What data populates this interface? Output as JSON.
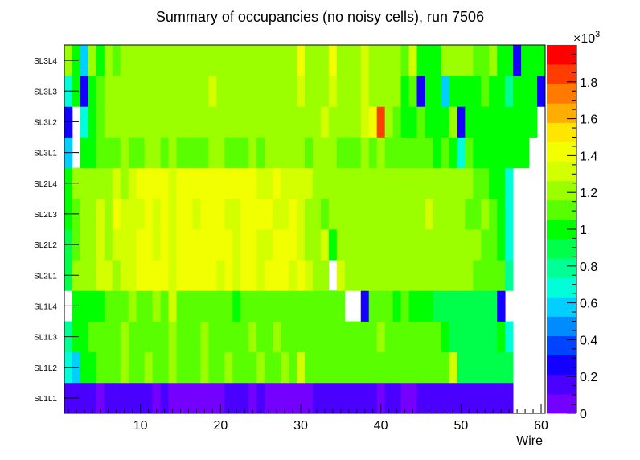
{
  "chart_data": {
    "type": "heatmap",
    "title": "Summary of occupancies (no noisy cells), run 7506",
    "xlabel": "Wire",
    "ylabel": "",
    "x_range": [
      0.5,
      60.5
    ],
    "x_ticks": [
      10,
      20,
      30,
      40,
      50,
      60
    ],
    "y_categories": [
      "SL1L1",
      "SL1L2",
      "SL1L3",
      "SL1L4",
      "SL2L1",
      "SL2L2",
      "SL2L3",
      "SL2L4",
      "SL3L1",
      "SL3L2",
      "SL3L3",
      "SL3L4"
    ],
    "colorbar": {
      "min": 0,
      "max": 2000,
      "ticks": [
        0,
        200,
        400,
        600,
        800,
        1000,
        1200,
        1400,
        1600,
        1800
      ],
      "tick_labels": [
        "0",
        "0.2",
        "0.4",
        "0.6",
        "0.8",
        "1",
        "1.2",
        "1.4",
        "1.6",
        "1.8"
      ],
      "exponent_label": "×10",
      "exponent_power": "3"
    },
    "rows": {
      "SL3L4": [
        1250,
        1050,
        550,
        1200,
        1050,
        1250,
        1150,
        1250,
        1250,
        1250,
        1200,
        1250,
        1200,
        1250,
        1250,
        1250,
        1200,
        1200,
        1250,
        1250,
        1250,
        1200,
        1250,
        1250,
        1200,
        1250,
        1250,
        1200,
        1250,
        1400,
        1250,
        1200,
        1250,
        1400,
        1200,
        1200,
        1250,
        1350,
        1200,
        1250,
        1250,
        1250,
        1150,
        1350,
        1050,
        1000,
        1050,
        1250,
        1200,
        1200,
        1200,
        1100,
        1100,
        1250,
        1050,
        1000,
        250,
        1000,
        1050,
        1050
      ],
      "SL3L3": [
        650,
        1050,
        250,
        1050,
        1150,
        1200,
        1250,
        1200,
        1200,
        1200,
        1250,
        1200,
        1200,
        1200,
        1250,
        1200,
        1200,
        1200,
        1300,
        1250,
        1200,
        1200,
        1200,
        1250,
        1200,
        1200,
        1200,
        1250,
        1250,
        1350,
        1200,
        1200,
        1250,
        1350,
        1200,
        1200,
        1200,
        1300,
        1200,
        1200,
        1200,
        1250,
        1050,
        1150,
        250,
        1050,
        1050,
        600,
        1050,
        1050,
        1050,
        1050,
        1150,
        1050,
        1050,
        750,
        1050,
        950,
        1050,
        300
      ],
      "SL3L2": [
        300,
        null,
        650,
        1050,
        1150,
        1200,
        1200,
        1200,
        1200,
        1200,
        1200,
        1200,
        1200,
        1200,
        1250,
        1200,
        1200,
        1200,
        1250,
        1200,
        1200,
        1200,
        1250,
        1200,
        1200,
        1200,
        1200,
        1200,
        1200,
        1250,
        1200,
        1200,
        1300,
        1250,
        1200,
        1250,
        1200,
        1350,
        1450,
        1850,
        1250,
        1150,
        1050,
        1050,
        1100,
        1050,
        1050,
        1050,
        1250,
        300,
        1050,
        1050,
        1050,
        1050,
        1050,
        1050,
        1050,
        1050,
        1050,
        null
      ],
      "SL3L1": [
        600,
        null,
        1050,
        1050,
        1150,
        1150,
        1150,
        1200,
        1150,
        1150,
        1200,
        1250,
        1150,
        1250,
        1150,
        1150,
        1150,
        1150,
        1200,
        1200,
        1150,
        1150,
        1150,
        1200,
        1150,
        1200,
        1200,
        1200,
        1250,
        1200,
        1150,
        1200,
        1250,
        1250,
        1150,
        1150,
        1150,
        1250,
        1150,
        1200,
        1100,
        1100,
        1100,
        1150,
        1100,
        1150,
        1050,
        1100,
        1050,
        700,
        1100,
        1050,
        1050,
        1050,
        1050,
        1050,
        1050,
        1050,
        null,
        null
      ],
      "SL2L4": [
        1050,
        1200,
        1200,
        1200,
        1200,
        1250,
        1350,
        1250,
        1350,
        1400,
        1400,
        1400,
        1400,
        1350,
        1400,
        1400,
        1400,
        1400,
        1400,
        1400,
        1400,
        1400,
        1400,
        1400,
        1350,
        1350,
        1400,
        1350,
        1300,
        1350,
        1300,
        1250,
        1250,
        1250,
        1250,
        1250,
        1250,
        1250,
        1250,
        1250,
        1250,
        1250,
        1250,
        1250,
        1250,
        1250,
        1250,
        1250,
        1250,
        1200,
        1200,
        1150,
        1100,
        1050,
        1050,
        700,
        null,
        null,
        null,
        null
      ],
      "SL2L3": [
        1050,
        1150,
        1250,
        1200,
        1300,
        1250,
        1400,
        1350,
        1300,
        1350,
        1400,
        1350,
        1400,
        1350,
        1400,
        1400,
        1350,
        1450,
        1400,
        1450,
        1350,
        1350,
        1400,
        1400,
        1400,
        1450,
        1350,
        1350,
        1400,
        1300,
        1250,
        1250,
        1100,
        1250,
        1250,
        1250,
        1250,
        1250,
        1250,
        1250,
        1250,
        1250,
        1250,
        1250,
        1250,
        1300,
        1250,
        1250,
        1200,
        1250,
        1150,
        1150,
        1200,
        1100,
        1050,
        700,
        null,
        null,
        null,
        null
      ],
      "SL2L2": [
        850,
        1150,
        1250,
        1250,
        1300,
        1250,
        1300,
        1300,
        1350,
        1400,
        1400,
        1350,
        1400,
        1350,
        1400,
        1400,
        1450,
        1400,
        1400,
        1400,
        1400,
        1350,
        1400,
        1450,
        1350,
        1350,
        1400,
        1400,
        1400,
        1300,
        1250,
        1250,
        1300,
        1050,
        1250,
        1250,
        1250,
        1250,
        1250,
        1250,
        1250,
        1250,
        1250,
        1250,
        1250,
        1250,
        1250,
        1250,
        1200,
        1200,
        1200,
        1200,
        1150,
        1100,
        1050,
        700,
        null,
        null,
        null,
        null
      ],
      "SL2L1": [
        850,
        1200,
        1250,
        1250,
        1300,
        1350,
        1250,
        1300,
        1350,
        1400,
        1400,
        1400,
        1400,
        1350,
        1400,
        1400,
        1400,
        1400,
        1400,
        1350,
        1400,
        1350,
        1400,
        1400,
        1350,
        1400,
        1400,
        1400,
        1350,
        1400,
        1300,
        1250,
        1250,
        null,
        1300,
        1250,
        1250,
        1250,
        1250,
        1250,
        1250,
        1250,
        1250,
        1250,
        1250,
        1250,
        1250,
        1250,
        1250,
        1200,
        1200,
        1150,
        1150,
        1100,
        1100,
        800,
        null,
        null,
        null,
        null
      ],
      "SL1L4": [
        null,
        950,
        1050,
        1050,
        1050,
        1150,
        1150,
        1150,
        1200,
        1100,
        1150,
        1200,
        1150,
        1350,
        1150,
        1150,
        1150,
        1150,
        1150,
        1150,
        1150,
        1050,
        1150,
        1150,
        1150,
        1150,
        1150,
        1100,
        1150,
        1100,
        1150,
        1150,
        1150,
        1150,
        1150,
        null,
        null,
        250,
        1150,
        1150,
        1100,
        1050,
        1150,
        1050,
        950,
        950,
        850,
        850,
        850,
        850,
        850,
        850,
        850,
        850,
        300,
        null,
        null,
        null,
        null,
        null
      ],
      "SL1L3": [
        750,
        950,
        1050,
        1100,
        1150,
        1150,
        1150,
        1200,
        1150,
        1150,
        1150,
        1150,
        1150,
        1200,
        1150,
        1150,
        1150,
        1200,
        1150,
        1150,
        1150,
        1150,
        1150,
        1200,
        1150,
        1150,
        1200,
        1150,
        1150,
        1150,
        1150,
        1150,
        1150,
        1150,
        1150,
        1150,
        1150,
        1150,
        1150,
        1200,
        1150,
        1150,
        1150,
        1150,
        1100,
        1150,
        1100,
        1050,
        850,
        850,
        850,
        850,
        850,
        850,
        1050,
        700,
        null,
        null,
        null,
        null
      ],
      "SL1L2": [
        700,
        600,
        1050,
        1050,
        1150,
        1150,
        1150,
        1200,
        1150,
        1150,
        1200,
        1150,
        1150,
        1200,
        1150,
        1150,
        1150,
        1200,
        1150,
        1150,
        1200,
        1150,
        1150,
        1150,
        1200,
        1150,
        1150,
        1200,
        1150,
        1300,
        1150,
        1150,
        1150,
        1150,
        1150,
        1150,
        1150,
        1150,
        1150,
        1150,
        1150,
        1150,
        1150,
        1150,
        1150,
        1150,
        1150,
        1150,
        1300,
        850,
        850,
        850,
        850,
        850,
        850,
        850,
        null,
        null,
        null,
        null
      ],
      "SL1L1": [
        150,
        150,
        150,
        150,
        100,
        150,
        150,
        150,
        150,
        150,
        150,
        100,
        200,
        100,
        100,
        100,
        100,
        100,
        100,
        100,
        150,
        150,
        150,
        100,
        150,
        100,
        100,
        100,
        100,
        100,
        100,
        150,
        200,
        200,
        200,
        200,
        200,
        200,
        150,
        100,
        150,
        150,
        100,
        100,
        150,
        150,
        150,
        150,
        150,
        150,
        150,
        150,
        150,
        150,
        150,
        150,
        null,
        null,
        null,
        null
      ]
    }
  }
}
